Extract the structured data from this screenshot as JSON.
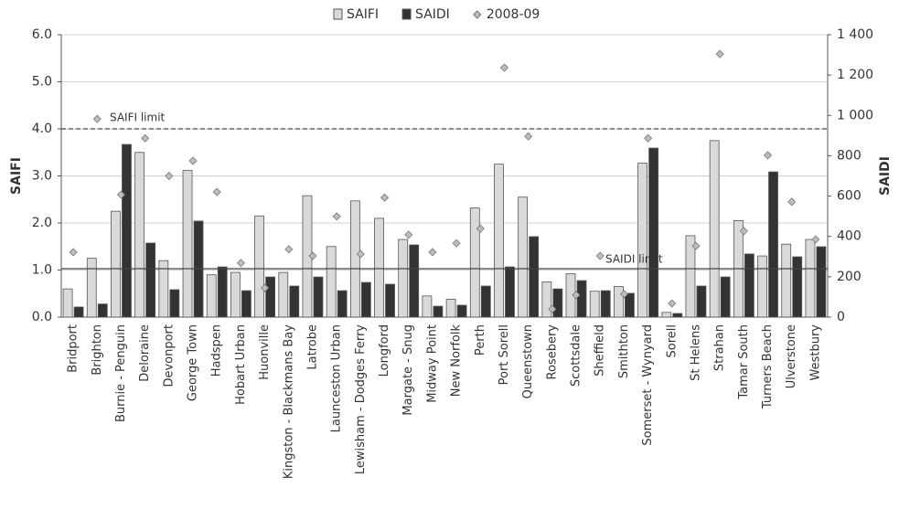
{
  "chart_data": {
    "type": "bar",
    "categories": [
      "Bridport",
      "Brighton",
      "Burnie - Penguin",
      "Deloraine",
      "Devonport",
      "George Town",
      "Hadspen",
      "Hobart Urban",
      "Huonville",
      "Kingston - Blackmans Bay",
      "Latrobe",
      "Launceston Urban",
      "Lewisham - Dodges Ferry",
      "Longford",
      "Margate - Snug",
      "Midway Point",
      "New Norfolk",
      "Perth",
      "Port Sorell",
      "Queenstown",
      "Rosebery",
      "Scottsdale",
      "Sheffield",
      "Smithton",
      "Somerset - Wynyard",
      "Sorell",
      "St Helens",
      "Strahan",
      "Tamar South",
      "Turners Beach",
      "Ulverstone",
      "Westbury"
    ],
    "series": [
      {
        "name": "SAIFI",
        "type": "bar",
        "color": "#d9d9d9",
        "axis": "y",
        "values": [
          0.6,
          1.25,
          2.25,
          3.5,
          1.2,
          3.12,
          0.9,
          0.95,
          2.15,
          0.95,
          2.58,
          1.5,
          2.47,
          2.1,
          1.65,
          0.45,
          0.38,
          2.32,
          3.25,
          2.55,
          0.75,
          0.92,
          0.55,
          0.65,
          3.27,
          0.1,
          1.73,
          3.75,
          2.05,
          1.3,
          1.55,
          1.65
        ]
      },
      {
        "name": "SAIDI",
        "type": "bar",
        "color": "#333333",
        "axis": "y2",
        "values": [
          50,
          65,
          856,
          367,
          136,
          476,
          249,
          131,
          199,
          154,
          199,
          131,
          172,
          163,
          358,
          54,
          59,
          154,
          249,
          399,
          140,
          181,
          131,
          118,
          838,
          18,
          154,
          199,
          313,
          720,
          299,
          349
        ]
      },
      {
        "name": "2008-09",
        "type": "scatter",
        "color": "#bdbdbd",
        "axis": "y",
        "values": [
          1.38,
          4.21,
          2.6,
          3.8,
          3.0,
          3.32,
          2.66,
          1.15,
          0.62,
          1.44,
          1.3,
          2.14,
          1.34,
          2.54,
          1.75,
          1.38,
          1.57,
          1.88,
          5.3,
          3.84,
          0.17,
          0.47,
          1.3,
          0.49,
          3.8,
          0.29,
          1.51,
          5.59,
          1.83,
          3.44,
          2.45,
          1.65
        ]
      }
    ],
    "ylabel": "SAIFI",
    "y2label": "SAIDI",
    "ylim": [
      0,
      6
    ],
    "yticks": [
      {
        "value": 0,
        "label": "0.0"
      },
      {
        "value": 1,
        "label": "1.0"
      },
      {
        "value": 2,
        "label": "2.0"
      },
      {
        "value": 3,
        "label": "3.0"
      },
      {
        "value": 4,
        "label": "4.0"
      },
      {
        "value": 5,
        "label": "5.0"
      },
      {
        "value": 6,
        "label": "6.0"
      }
    ],
    "y2lim": [
      0,
      1400
    ],
    "y2ticks": [
      0,
      200,
      400,
      600,
      800,
      {
        "value": 1000,
        "label": "1 000"
      },
      {
        "value": 1200,
        "label": "1 200"
      },
      {
        "value": 1400,
        "label": "1 400"
      }
    ],
    "grid": true,
    "reference_lines": [
      {
        "label": "SAIFI limit",
        "value": 4,
        "axis": "y",
        "style": "dashed"
      },
      {
        "label": "SAIDI limit",
        "value": 240,
        "axis": "y2",
        "style": "solid"
      }
    ],
    "legend": "top"
  }
}
